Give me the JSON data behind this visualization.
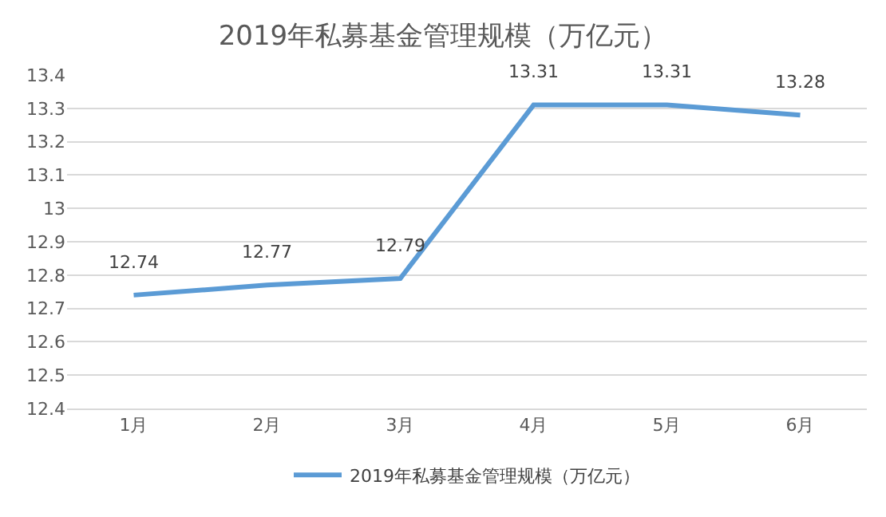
{
  "chart_data": {
    "type": "line",
    "title": "2019年私募基金管理规模（万亿元）",
    "categories": [
      "1月",
      "2月",
      "3月",
      "4月",
      "5月",
      "6月"
    ],
    "series": [
      {
        "name": "2019年私募基金管理规模（万亿元）",
        "color": "#5b9bd5",
        "values": [
          12.74,
          12.77,
          12.79,
          13.31,
          13.31,
          13.28
        ]
      }
    ],
    "ylim": [
      12.4,
      13.4
    ],
    "yticks": [
      12.4,
      12.5,
      12.6,
      12.7,
      12.8,
      12.9,
      13,
      13.1,
      13.2,
      13.3,
      13.4
    ],
    "grid": "y",
    "legend": "bottom",
    "data_labels": true,
    "marker": "none",
    "line_style": "solid"
  }
}
